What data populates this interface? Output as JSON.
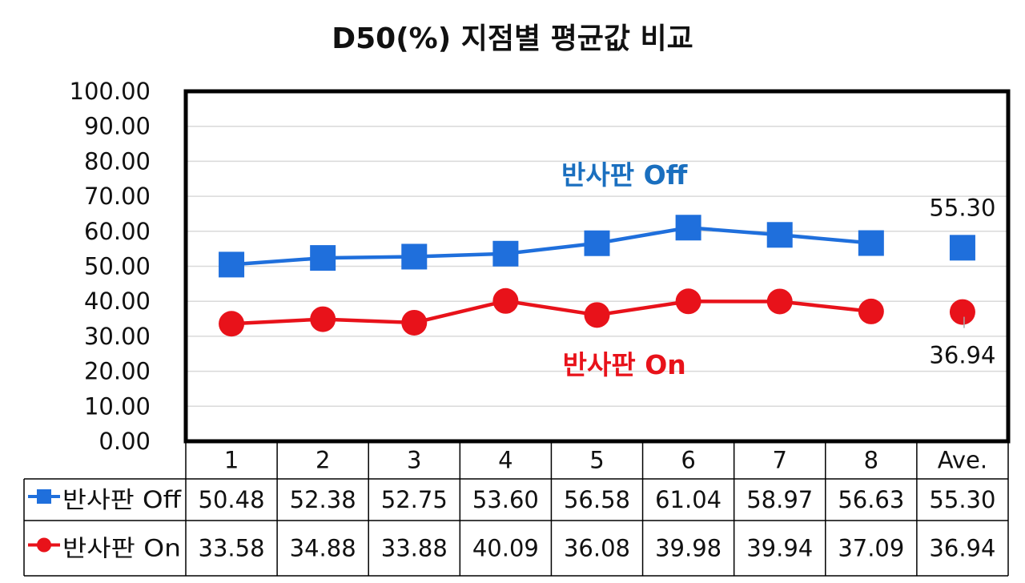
{
  "chart_data": {
    "type": "line",
    "title": "D50(%) 지점별 평균값 비교",
    "categories": [
      "1",
      "2",
      "3",
      "4",
      "5",
      "6",
      "7",
      "8",
      "Ave."
    ],
    "ylim": [
      0,
      100
    ],
    "yticks": [
      "100.00",
      "90.00",
      "80.00",
      "70.00",
      "60.00",
      "50.00",
      "40.00",
      "30.00",
      "20.00",
      "10.00",
      "0.00"
    ],
    "grid": true,
    "legend": "data-table-left",
    "series": [
      {
        "name": "반사판 Off",
        "chart_label": "반사판 Off",
        "color": "#1f6fdc",
        "label_color": "#1a6fbf",
        "marker": "square",
        "values": [
          50.48,
          52.38,
          52.75,
          53.6,
          56.58,
          61.04,
          58.97,
          56.63,
          55.3
        ],
        "display": [
          "50.48",
          "52.38",
          "52.75",
          "53.60",
          "56.58",
          "61.04",
          "58.97",
          "56.63",
          "55.30"
        ],
        "average_label": "55.30"
      },
      {
        "name": "반사판 On",
        "chart_label": "반사판 On",
        "color": "#e8121a",
        "label_color": "#e8121a",
        "marker": "circle",
        "values": [
          33.58,
          34.88,
          33.88,
          40.09,
          36.08,
          39.98,
          39.94,
          37.09,
          36.94
        ],
        "display": [
          "33.58",
          "34.88",
          "33.88",
          "40.09",
          "36.08",
          "39.98",
          "39.94",
          "37.09",
          "36.94"
        ],
        "average_label": "36.94"
      }
    ]
  }
}
